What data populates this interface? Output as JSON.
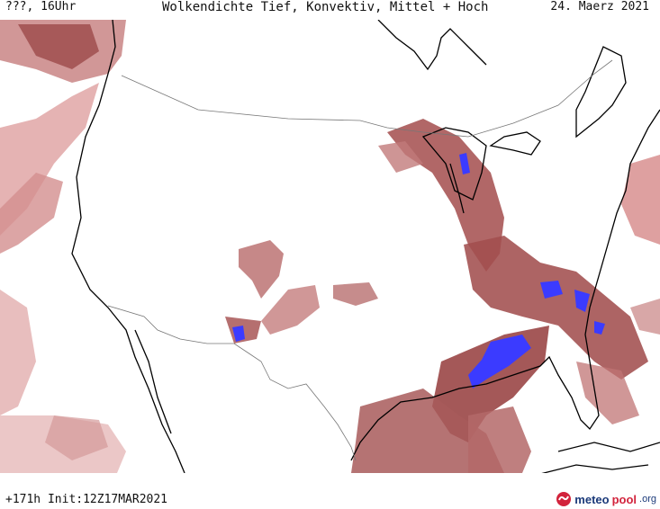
{
  "header": {
    "location_time": "???, 16Uhr",
    "title": "Wolkendichte  Tief, Konvektiv, Mittel + Hoch",
    "date": "24. Maerz 2021"
  },
  "footer": {
    "run_info": "+171h  Init:12Z17MAR2021"
  },
  "logo": {
    "brand": "meteo",
    "brand2": "pool",
    "tld": ".org"
  },
  "colors": {
    "cloud_dark": "#9c4a4a",
    "cloud_mid": "#c07474",
    "cloud_light": "#e6b7b7",
    "convective_blue": "#3b3bff",
    "coastline": "#000000",
    "border": "#777777"
  }
}
